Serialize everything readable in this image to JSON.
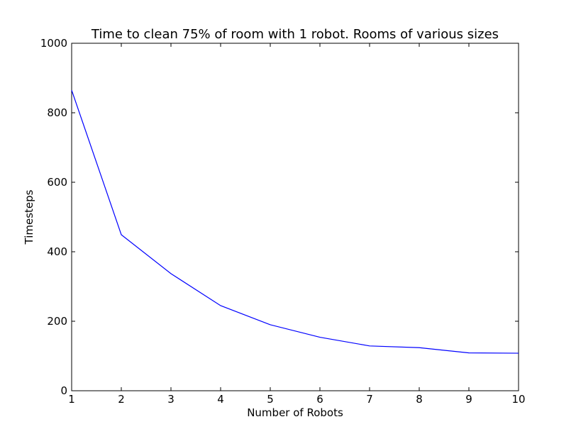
{
  "chart_data": {
    "type": "line",
    "title": "Time to clean 75% of room with 1 robot. Rooms of various sizes",
    "xlabel": "Number of Robots",
    "ylabel": "Timesteps",
    "xlim": [
      1,
      10
    ],
    "ylim": [
      0,
      1000
    ],
    "xticks": [
      1,
      2,
      3,
      4,
      5,
      6,
      7,
      8,
      9,
      10
    ],
    "yticks": [
      0,
      200,
      400,
      600,
      800,
      1000
    ],
    "grid": false,
    "series": [
      {
        "color": "#0000ff",
        "x": [
          1,
          2,
          3,
          4,
          5,
          6,
          7,
          8,
          9,
          10
        ],
        "y": [
          865,
          449,
          337,
          245,
          190,
          154,
          129,
          124,
          109,
          108
        ]
      }
    ]
  }
}
